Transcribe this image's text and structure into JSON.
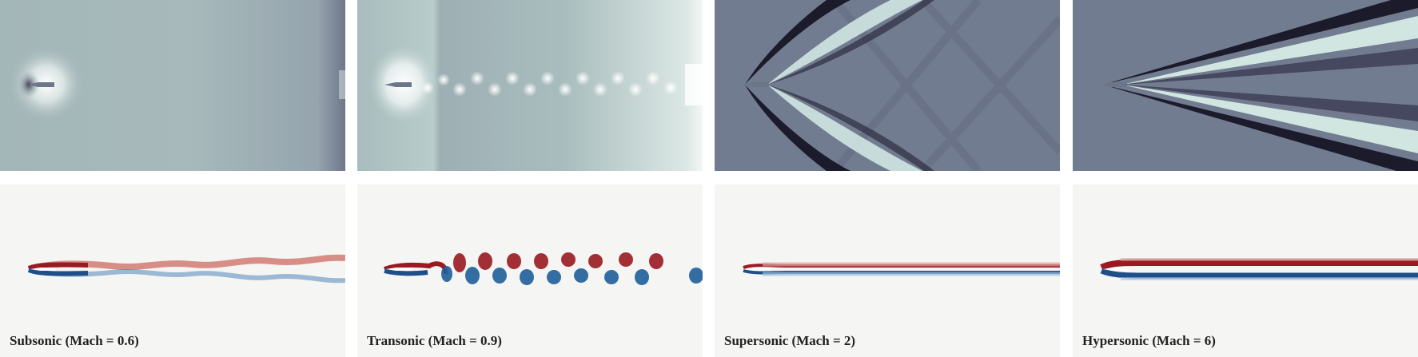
{
  "panels": [
    {
      "id": "subsonic",
      "caption": "Subsonic (Mach = 0.6)",
      "mach": 0.6
    },
    {
      "id": "transonic",
      "caption": "Transonic (Mach = 0.9)",
      "mach": 0.9
    },
    {
      "id": "supersonic",
      "caption": "Supersonic (Mach = 2)",
      "mach": 2
    },
    {
      "id": "hypersonic",
      "caption": "Hypersonic (Mach = 6)",
      "mach": 6
    }
  ],
  "colors": {
    "pressure_subsonic": "#a9bcbd",
    "pressure_supersonic": "#727c90",
    "shock_dark": "#1b1a2a",
    "shock_light": "#cfe6e2",
    "vorticity_bg": "#f5f5f4",
    "vorticity_pos": "#9b1a22",
    "vorticity_neg": "#1f5f9a"
  }
}
